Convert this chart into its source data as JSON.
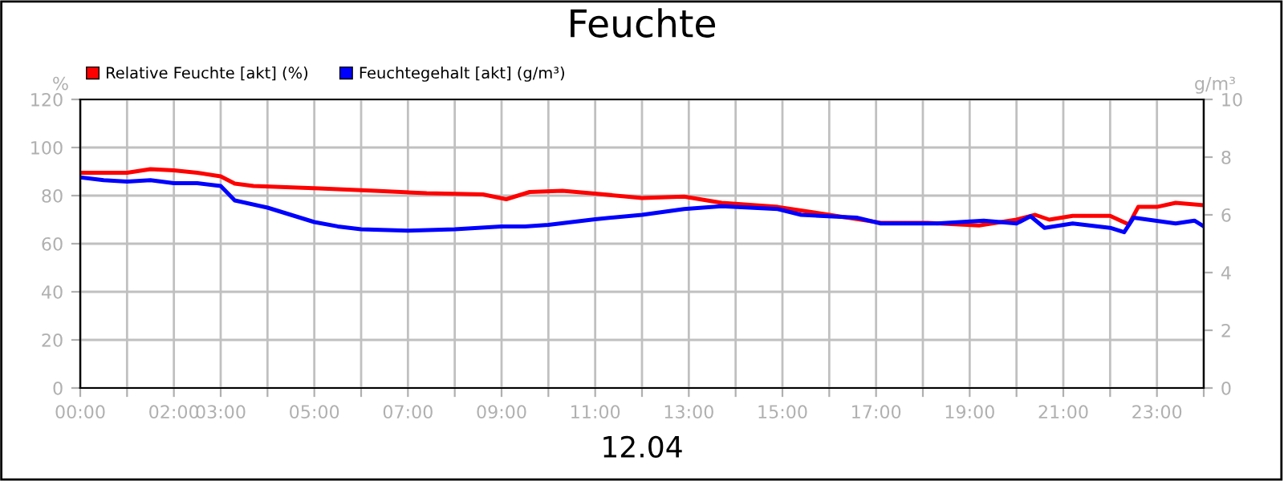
{
  "chart_data": {
    "type": "line",
    "title": "Feuchte",
    "xlabel": "12.04",
    "ylabel": "%",
    "y2label": "g/m³",
    "xlim": [
      0,
      24
    ],
    "xticks": [
      {
        "value": 0,
        "label": "00:00"
      },
      {
        "value": 1,
        "label": null
      },
      {
        "value": 2,
        "label": "02:00"
      },
      {
        "value": 3,
        "label": "03:00"
      },
      {
        "value": 4,
        "label": null
      },
      {
        "value": 5,
        "label": "05:00"
      },
      {
        "value": 6,
        "label": null
      },
      {
        "value": 7,
        "label": "07:00"
      },
      {
        "value": 8,
        "label": null
      },
      {
        "value": 9,
        "label": "09:00"
      },
      {
        "value": 10,
        "label": null
      },
      {
        "value": 11,
        "label": "11:00"
      },
      {
        "value": 12,
        "label": null
      },
      {
        "value": 13,
        "label": "13:00"
      },
      {
        "value": 14,
        "label": null
      },
      {
        "value": 15,
        "label": "15:00"
      },
      {
        "value": 16,
        "label": null
      },
      {
        "value": 17,
        "label": "17:00"
      },
      {
        "value": 18,
        "label": null
      },
      {
        "value": 19,
        "label": "19:00"
      },
      {
        "value": 20,
        "label": null
      },
      {
        "value": 21,
        "label": "21:00"
      },
      {
        "value": 22,
        "label": null
      },
      {
        "value": 23,
        "label": "23:00"
      },
      {
        "value": 24,
        "label": null
      }
    ],
    "ylim": [
      0,
      120
    ],
    "yticks": [
      0,
      20,
      40,
      60,
      80,
      100,
      120
    ],
    "y2lim": [
      0,
      10
    ],
    "y2ticks": [
      0,
      2,
      4,
      6,
      8,
      10
    ],
    "grid": true,
    "legend": "top left",
    "line_style": "solid",
    "marker": "none",
    "series": [
      {
        "name": "Relative Feuchte [akt] (%)",
        "color": "#ff0000",
        "x": [
          0,
          1,
          1.5,
          2,
          2.5,
          3,
          3.3,
          3.7,
          5.1,
          6.3,
          7.4,
          8.6,
          9.1,
          9.6,
          10.3,
          10.9,
          12,
          12.9,
          13.7,
          14.9,
          16,
          17.1,
          18.1,
          19.2,
          20,
          20.4,
          20.7,
          21.2,
          22,
          22.4,
          22.6,
          23,
          23.4,
          24
        ],
        "values": [
          89.5,
          89.5,
          91,
          90.5,
          89.5,
          88,
          85,
          84,
          83,
          82,
          81,
          80.5,
          78.5,
          81.5,
          82,
          81,
          79,
          79.6,
          77,
          75.3,
          72,
          68.7,
          68.7,
          67.6,
          70,
          72,
          70,
          71.6,
          71.6,
          68,
          75.3,
          75.3,
          77,
          76
        ]
      },
      {
        "name": "Feuchtegehalt [akt] (g/m³)",
        "color": "#0000ff",
        "axis": "y2",
        "x": [
          0,
          0.5,
          1,
          1.5,
          2,
          2.5,
          3,
          3.3,
          4,
          4.5,
          5,
          5.5,
          6,
          7,
          8,
          9,
          9.5,
          10,
          11,
          12,
          12.9,
          13.7,
          14.9,
          15.4,
          16.6,
          17.1,
          18.3,
          19.3,
          20,
          20.3,
          20.6,
          21.2,
          22,
          22.3,
          22.5,
          23.4,
          23.8,
          24
        ],
        "values": [
          7.3,
          7.2,
          7.15,
          7.2,
          7.1,
          7.1,
          7.0,
          6.5,
          6.25,
          6.0,
          5.75,
          5.6,
          5.5,
          5.45,
          5.5,
          5.6,
          5.6,
          5.65,
          5.85,
          6.0,
          6.2,
          6.3,
          6.2,
          6.0,
          5.9,
          5.7,
          5.7,
          5.8,
          5.7,
          5.95,
          5.55,
          5.7,
          5.55,
          5.4,
          5.9,
          5.7,
          5.8,
          5.6
        ]
      }
    ]
  }
}
